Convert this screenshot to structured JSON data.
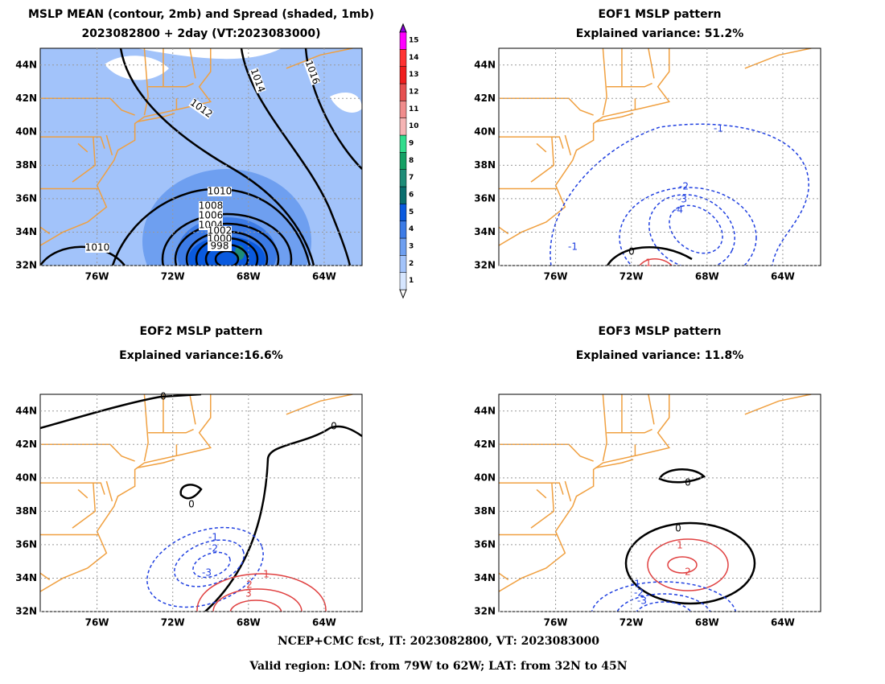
{
  "panels": [
    {
      "title": [
        "MSLP MEAN (contour, 2mb) and Spread (shaded, 1mb)",
        "2023082800 + 2day (VT:2023083000)"
      ],
      "contour_labels": [
        "1010",
        "1008",
        "1006",
        "1004",
        "1002",
        "1000",
        "998",
        "1010",
        "1012",
        "1014",
        "1016"
      ]
    },
    {
      "title": [
        "EOF1 MSLP pattern",
        "Explained variance: 51.2%"
      ],
      "contour_labels": [
        "-1",
        "-2",
        "-3",
        "-4",
        "-1",
        "0",
        "1"
      ]
    },
    {
      "title": [
        "EOF2 MSLP pattern",
        "Explained variance:16.6%"
      ],
      "contour_labels": [
        "0",
        "0",
        "0",
        "-1",
        "-2",
        "-3",
        "1",
        "2",
        "3"
      ]
    },
    {
      "title": [
        "EOF3 MSLP pattern",
        "Explained variance: 11.8%"
      ],
      "contour_labels": [
        "0",
        "0",
        "1",
        "2",
        "-1",
        "-2",
        "-3"
      ]
    }
  ],
  "lat_labels": [
    "44N",
    "42N",
    "40N",
    "38N",
    "36N",
    "34N",
    "32N"
  ],
  "lon_labels": [
    "76W",
    "72W",
    "68W",
    "64W"
  ],
  "colorbar": {
    "ticks": [
      1,
      2,
      3,
      4,
      5,
      6,
      7,
      8,
      9,
      10,
      11,
      12,
      13,
      14,
      15
    ],
    "colors": [
      "#d6e6ff",
      "#a2c3fa",
      "#6e9ff0",
      "#3c7be6",
      "#0a5ade",
      "#0a6e6e",
      "#1e8c78",
      "#14a064",
      "#30dc8c",
      "#f5b4b4",
      "#f08c8c",
      "#e65050",
      "#f01e1e",
      "#ff3232",
      "#ff00ff"
    ],
    "over_color": "#8c00dc",
    "under_color": "#ffffff"
  },
  "footer": [
    "NCEP+CMC fcst, IT: 2023082800, VT: 2023083000",
    "Valid region: LON: from 79W to 62W; LAT: from 32N to 45N"
  ]
}
